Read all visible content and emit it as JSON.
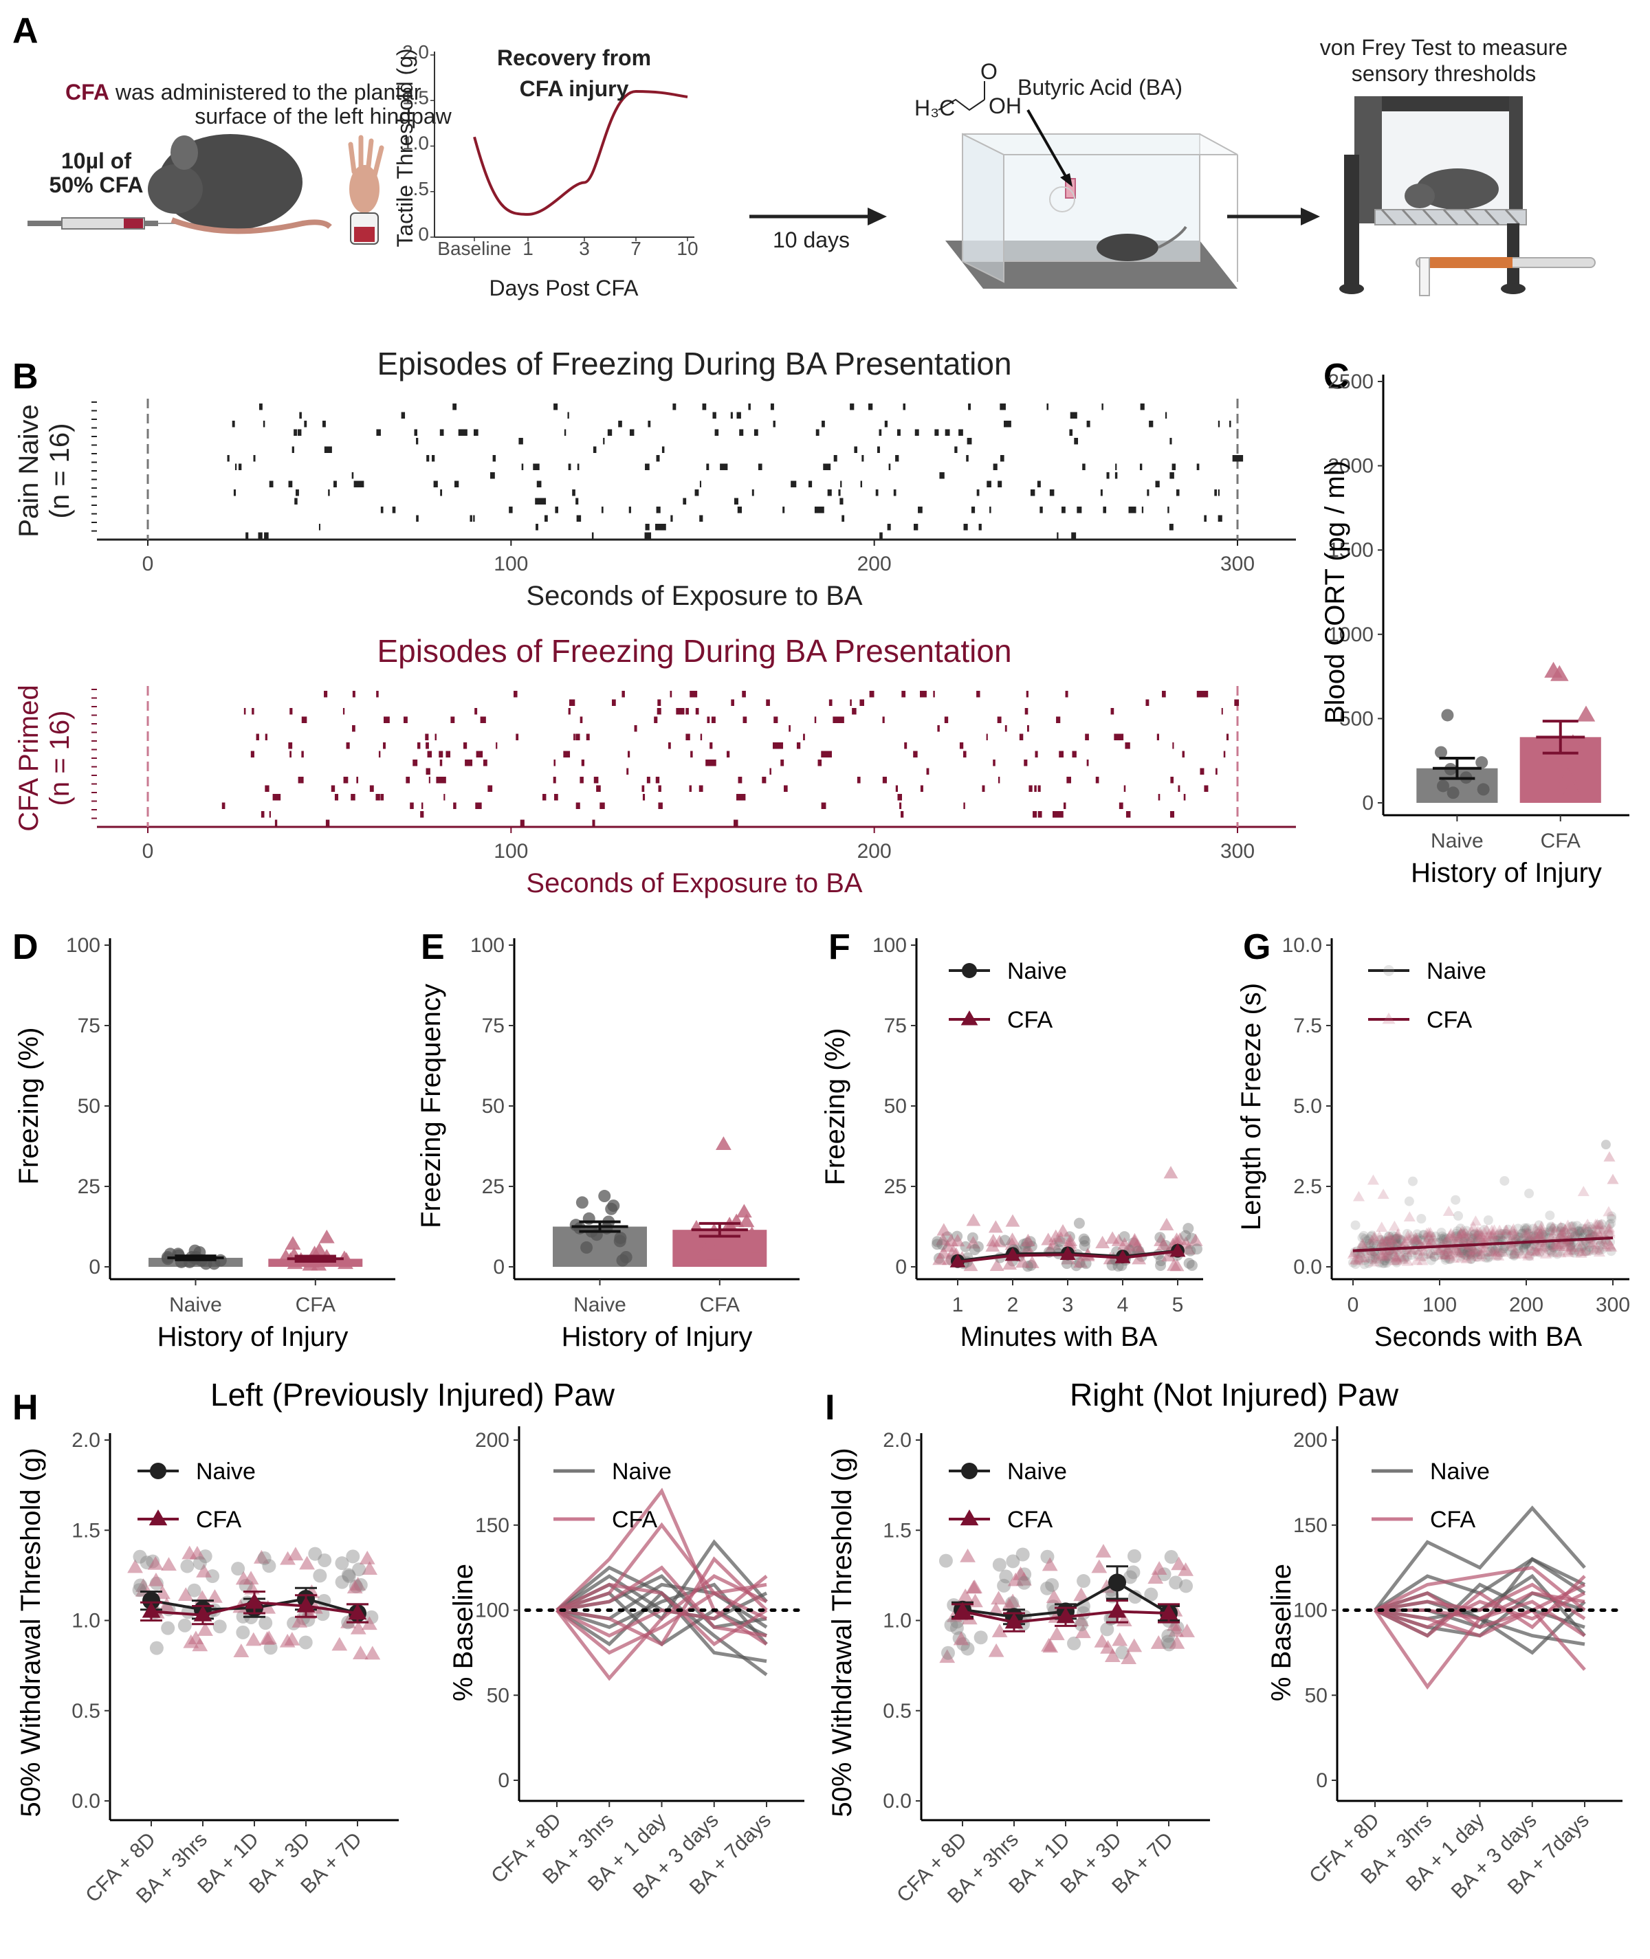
{
  "colors": {
    "naive": "#333333",
    "naive_light": "#999999",
    "cfa": "#7a1030",
    "cfa_light": "#c97a91",
    "naive_bar": "#808080",
    "cfa_bar": "#c0677f"
  },
  "panelA": {
    "label": "A",
    "cfa_word": "CFA",
    "cfa_text1": " was administered to the plantar",
    "cfa_text2": "surface of the left hindpaw",
    "dose1": "10µl of",
    "dose2": "50% CFA",
    "recovery_title1": "Recovery from",
    "recovery_title2": "CFA injury",
    "inset_ylabel": "Tactile Threshold (g)",
    "inset_xlabel": "Days Post CFA",
    "inset_yticks": [
      "0",
      ".5",
      "1.0",
      "1.5",
      "2.0"
    ],
    "inset_xticks": [
      "Baseline",
      "1",
      "3",
      "7",
      "10"
    ],
    "arrow_text": "10 days",
    "ba_label": "Butyric Acid (BA)",
    "chem_h3c": "H₃C",
    "chem_o": "O",
    "chem_oh": "OH",
    "vf_text1": "von Frey Test to measure",
    "vf_text2": "sensory thresholds"
  },
  "panelB": {
    "label": "B",
    "naive_title": "Episodes of Freezing During BA Presentation",
    "cfa_title": "Episodes of Freezing During BA Presentation",
    "naive_ylabel1": "Pain Naive",
    "naive_ylabel2": "(n = 16)",
    "cfa_ylabel1": "CFA Primed",
    "cfa_ylabel2": "(n = 16)",
    "xlabel": "Seconds of Exposure to BA",
    "xticks": [
      "0",
      "100",
      "200",
      "300"
    ]
  },
  "panelC": {
    "label": "C",
    "ylabel": "Blood CORT (pg / ml)",
    "xlabel": "History of Injury",
    "yticks": [
      "0",
      "500",
      "1000",
      "1500",
      "2000",
      "2500"
    ],
    "categories": [
      "Naive",
      "CFA"
    ]
  },
  "panelD": {
    "label": "D",
    "ylabel": "Freezing (%)",
    "xlabel": "History of Injury",
    "yticks": [
      "0",
      "25",
      "50",
      "75",
      "100"
    ],
    "categories": [
      "Naive",
      "CFA"
    ]
  },
  "panelE": {
    "label": "E",
    "ylabel": "Freezing Frequency",
    "xlabel": "History of Injury",
    "yticks": [
      "0",
      "25",
      "50",
      "75",
      "100"
    ],
    "categories": [
      "Naive",
      "CFA"
    ]
  },
  "panelF": {
    "label": "F",
    "ylabel": "Freezing (%)",
    "xlabel": "Minutes with BA",
    "yticks": [
      "0",
      "25",
      "50",
      "75",
      "100"
    ],
    "xticks": [
      "1",
      "2",
      "3",
      "4",
      "5"
    ],
    "legend": [
      "Naive",
      "CFA"
    ]
  },
  "panelG": {
    "label": "G",
    "ylabel": "Length of Freeze (s)",
    "xlabel": "Seconds with BA",
    "yticks": [
      "0.0",
      "2.5",
      "5.0",
      "7.5",
      "10.0"
    ],
    "xticks": [
      "0",
      "100",
      "200",
      "300"
    ],
    "legend": [
      "Naive",
      "CFA"
    ]
  },
  "panelH": {
    "label": "H",
    "title": "Left (Previously Injured) Paw",
    "ylabel": "50% Withdrawal Threshold (g)",
    "ylabel2": "% Baseline",
    "yticks": [
      "0.0",
      "0.5",
      "1.0",
      "1.5",
      "2.0"
    ],
    "yticks2": [
      "0",
      "50",
      "100",
      "150",
      "200"
    ],
    "xticks": [
      "CFA + 8D",
      "BA + 3hrs",
      "BA + 1D",
      "BA + 3D",
      "BA + 7D"
    ],
    "xticks2": [
      "CFA + 8D",
      "BA + 3hrs",
      "BA + 1 day",
      "BA + 3 days",
      "BA + 7days"
    ],
    "legend": [
      "Naive",
      "CFA"
    ]
  },
  "panelI": {
    "label": "I",
    "title": "Right (Not Injured) Paw",
    "ylabel": "50% Withdrawal Threshold (g)",
    "ylabel2": "% Baseline",
    "yticks": [
      "0.0",
      "0.5",
      "1.0",
      "1.5",
      "2.0"
    ],
    "yticks2": [
      "0",
      "50",
      "100",
      "150",
      "200"
    ],
    "xticks": [
      "CFA + 8D",
      "BA + 3hrs",
      "BA + 1D",
      "BA + 3D",
      "BA + 7D"
    ],
    "xticks2": [
      "CFA + 8D",
      "BA + 3hrs",
      "BA + 1 day",
      "BA + 3 days",
      "BA + 7days"
    ],
    "legend": [
      "Naive",
      "CFA"
    ]
  },
  "chart_data": [
    {
      "panel": "A-inset",
      "type": "line",
      "title": "Recovery from CFA injury",
      "xlabel": "Days Post CFA",
      "ylabel": "Tactile Threshold (g)",
      "x": [
        "Baseline",
        "1",
        "3",
        "7",
        "10"
      ],
      "values": [
        1.1,
        0.25,
        0.6,
        1.6,
        1.6
      ],
      "ylim": [
        0,
        2.0
      ]
    },
    {
      "panel": "B-naive",
      "type": "scatter",
      "title": "Episodes of Freezing During BA Presentation",
      "xlabel": "Seconds of Exposure to BA",
      "xlim": [
        0,
        300
      ],
      "n_animals": 16,
      "marks": "freezing episodes per animal (raster)"
    },
    {
      "panel": "B-cfa",
      "type": "scatter",
      "title": "Episodes of Freezing During BA Presentation",
      "xlabel": "Seconds of Exposure to BA",
      "xlim": [
        0,
        300
      ],
      "n_animals": 16,
      "marks": "freezing episodes per animal (raster)"
    },
    {
      "panel": "C",
      "type": "bar",
      "categories": [
        "Naive",
        "CFA"
      ],
      "values": [
        205,
        390
      ],
      "errors": [
        60,
        95
      ],
      "points": {
        "Naive": [
          520,
          300,
          240,
          200,
          150,
          100,
          80,
          60
        ],
        "CFA": [
          780,
          760,
          520,
          350,
          260,
          150,
          80
        ]
      },
      "ylabel": "Blood CORT (pg / ml)",
      "xlabel": "History of Injury",
      "ylim": [
        0,
        2500
      ]
    },
    {
      "panel": "D",
      "type": "bar",
      "categories": [
        "Naive",
        "CFA"
      ],
      "values": [
        2.8,
        2.5
      ],
      "errors": [
        0.6,
        0.8
      ],
      "points": {
        "Naive": [
          5,
          4.5,
          4,
          3.5,
          3,
          3,
          2.5,
          2,
          2,
          1.5,
          1.5,
          1,
          1,
          3,
          2.5,
          4
        ],
        "CFA": [
          9,
          7,
          5,
          4,
          3.5,
          3,
          2.5,
          2,
          2,
          1.5,
          1,
          1,
          0.5,
          0.5,
          3,
          2
        ]
      },
      "ylabel": "Freezing (%)",
      "xlabel": "History of Injury",
      "ylim": [
        0,
        100
      ]
    },
    {
      "panel": "E",
      "type": "bar",
      "categories": [
        "Naive",
        "CFA"
      ],
      "values": [
        12.5,
        11.5
      ],
      "errors": [
        1.5,
        2
      ],
      "points": {
        "Naive": [
          22,
          20,
          19,
          18,
          15,
          14,
          13,
          12,
          12,
          11,
          10,
          9,
          8,
          6,
          3,
          2
        ],
        "CFA": [
          38,
          17,
          14,
          13,
          12,
          11,
          10,
          9,
          8,
          6,
          5,
          4,
          3,
          2,
          14,
          12
        ]
      },
      "ylabel": "Freezing Frequency",
      "xlabel": "History of Injury",
      "ylim": [
        0,
        100
      ]
    },
    {
      "panel": "F",
      "type": "line",
      "x": [
        1,
        2,
        3,
        4,
        5
      ],
      "series": [
        {
          "name": "Naive",
          "values": [
            1.8,
            4,
            4.2,
            3.2,
            5
          ]
        },
        {
          "name": "CFA",
          "values": [
            1.5,
            3.5,
            3.8,
            2.8,
            4.8
          ]
        }
      ],
      "ylabel": "Freezing (%)",
      "xlabel": "Minutes with BA",
      "ylim": [
        0,
        100
      ]
    },
    {
      "panel": "G",
      "type": "scatter",
      "series": [
        {
          "name": "Naive",
          "fit": [
            [
              0,
              0.5
            ],
            [
              300,
              0.9
            ]
          ]
        },
        {
          "name": "CFA",
          "fit": [
            [
              0,
              0.5
            ],
            [
              300,
              0.9
            ]
          ]
        }
      ],
      "ylabel": "Length of Freeze (s)",
      "xlabel": "Seconds with BA",
      "xlim": [
        0,
        300
      ],
      "ylim": [
        0,
        10
      ]
    },
    {
      "panel": "H-left",
      "type": "line",
      "title": "Left (Previously Injured) Paw",
      "categories": [
        "CFA + 8D",
        "BA + 3hrs",
        "BA + 1D",
        "BA + 3D",
        "BA + 7D"
      ],
      "series": [
        {
          "name": "Naive",
          "values": [
            1.11,
            1.06,
            1.07,
            1.12,
            1.04
          ],
          "errors": [
            0.05,
            0.05,
            0.05,
            0.06,
            0.05
          ]
        },
        {
          "name": "CFA",
          "values": [
            1.05,
            1.03,
            1.1,
            1.08,
            1.04
          ],
          "errors": [
            0.05,
            0.05,
            0.06,
            0.06,
            0.05
          ]
        }
      ],
      "ylabel": "50% Withdrawal Threshold (g)",
      "ylim": [
        0,
        2.0
      ]
    },
    {
      "panel": "H-right",
      "type": "line",
      "categories": [
        "CFA + 8D",
        "BA + 3hrs",
        "BA + 1 day",
        "BA + 3 days",
        "BA + 7days"
      ],
      "series": [
        {
          "name": "Naive",
          "lines": [
            [
              100,
              125,
              110,
              75,
              70
            ],
            [
              100,
              115,
              95,
              140,
              105
            ],
            [
              100,
              110,
              80,
              100,
              85
            ],
            [
              100,
              105,
              120,
              90,
              95
            ],
            [
              100,
              90,
              105,
              115,
              80
            ],
            [
              100,
              120,
              100,
              95,
              110
            ],
            [
              100,
              95,
              115,
              110,
              90
            ],
            [
              100,
              80,
              110,
              85,
              62
            ]
          ]
        },
        {
          "name": "CFA",
          "lines": [
            [
              100,
              60,
              95,
              120,
              105
            ],
            [
              100,
              130,
              170,
              100,
              80
            ],
            [
              100,
              110,
              150,
              110,
              95
            ],
            [
              100,
              85,
              100,
              95,
              120
            ],
            [
              100,
              95,
              80,
              130,
              100
            ],
            [
              100,
              75,
              90,
              110,
              115
            ],
            [
              100,
              105,
              125,
              90,
              85
            ],
            [
              100,
              115,
              110,
              80,
              100
            ]
          ]
        }
      ],
      "ylabel": "% Baseline",
      "ylim": [
        0,
        200
      ]
    },
    {
      "panel": "I-left",
      "type": "line",
      "title": "Right (Not Injured) Paw",
      "categories": [
        "CFA + 8D",
        "BA + 3hrs",
        "BA + 1D",
        "BA + 3D",
        "BA + 7D"
      ],
      "series": [
        {
          "name": "Naive",
          "values": [
            1.06,
            1.02,
            1.05,
            1.21,
            1.04
          ],
          "errors": [
            0.04,
            0.04,
            0.04,
            0.09,
            0.04
          ]
        },
        {
          "name": "CFA",
          "values": [
            1.05,
            0.99,
            1.02,
            1.05,
            1.04
          ],
          "errors": [
            0.04,
            0.05,
            0.05,
            0.06,
            0.05
          ]
        }
      ],
      "ylabel": "50% Withdrawal Threshold (g)",
      "ylim": [
        0,
        2.0
      ]
    },
    {
      "panel": "I-right",
      "type": "line",
      "categories": [
        "CFA + 8D",
        "BA + 3hrs",
        "BA + 1 day",
        "BA + 3 days",
        "BA + 7days"
      ],
      "series": [
        {
          "name": "Naive",
          "lines": [
            [
              100,
              140,
              125,
              160,
              125
            ],
            [
              100,
              120,
              110,
              130,
              110
            ],
            [
              100,
              95,
              100,
              120,
              85
            ],
            [
              100,
              90,
              85,
              110,
              100
            ],
            [
              100,
              110,
              95,
              75,
              105
            ],
            [
              100,
              85,
              115,
              100,
              90
            ],
            [
              100,
              100,
              90,
              130,
              115
            ],
            [
              100,
              105,
              95,
              85,
              80
            ]
          ]
        },
        {
          "name": "CFA",
          "lines": [
            [
              100,
              55,
              95,
              110,
              105
            ],
            [
              100,
              115,
              120,
              125,
              100
            ],
            [
              100,
              95,
              85,
              100,
              65
            ],
            [
              100,
              90,
              105,
              95,
              110
            ],
            [
              100,
              105,
              100,
              115,
              95
            ],
            [
              100,
              85,
              110,
              90,
              120
            ],
            [
              100,
              100,
              95,
              105,
              85
            ],
            [
              100,
              110,
              90,
              100,
              115
            ]
          ]
        }
      ],
      "ylabel": "% Baseline",
      "ylim": [
        0,
        200
      ]
    }
  ]
}
